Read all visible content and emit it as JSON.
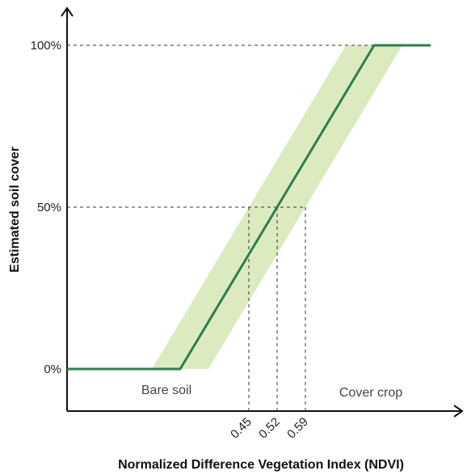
{
  "chart_data": {
    "type": "line",
    "title": "",
    "xlabel": "Normalized Difference Vegetation Index (NDVI)",
    "ylabel": "Estimated soil cover",
    "ylim": [
      0,
      100
    ],
    "yticks": [
      {
        "value": 0,
        "label": "0%"
      },
      {
        "value": 50,
        "label": "50%"
      },
      {
        "value": 100,
        "label": "100%"
      }
    ],
    "xticks": [
      {
        "value": 0.45,
        "label": "0.45"
      },
      {
        "value": 0.52,
        "label": "0.52"
      },
      {
        "value": 0.59,
        "label": "0.59"
      }
    ],
    "series": [
      {
        "x": [
          0.0,
          0.28,
          0.28,
          0.76,
          0.76,
          0.9
        ],
        "y": [
          0,
          0,
          0,
          100,
          100,
          100
        ],
        "color": "#2e7d4f"
      }
    ],
    "band": {
      "offset": 0.07,
      "color": "#dcebbf"
    },
    "guides": [
      {
        "x": 0.45,
        "y": 50
      },
      {
        "x": 0.52,
        "y": 50
      },
      {
        "x": 0.59,
        "y": 50
      }
    ],
    "regions": [
      {
        "label": "Bare soil"
      },
      {
        "label": "Cover crop"
      }
    ],
    "grid": false,
    "legend": "none"
  }
}
